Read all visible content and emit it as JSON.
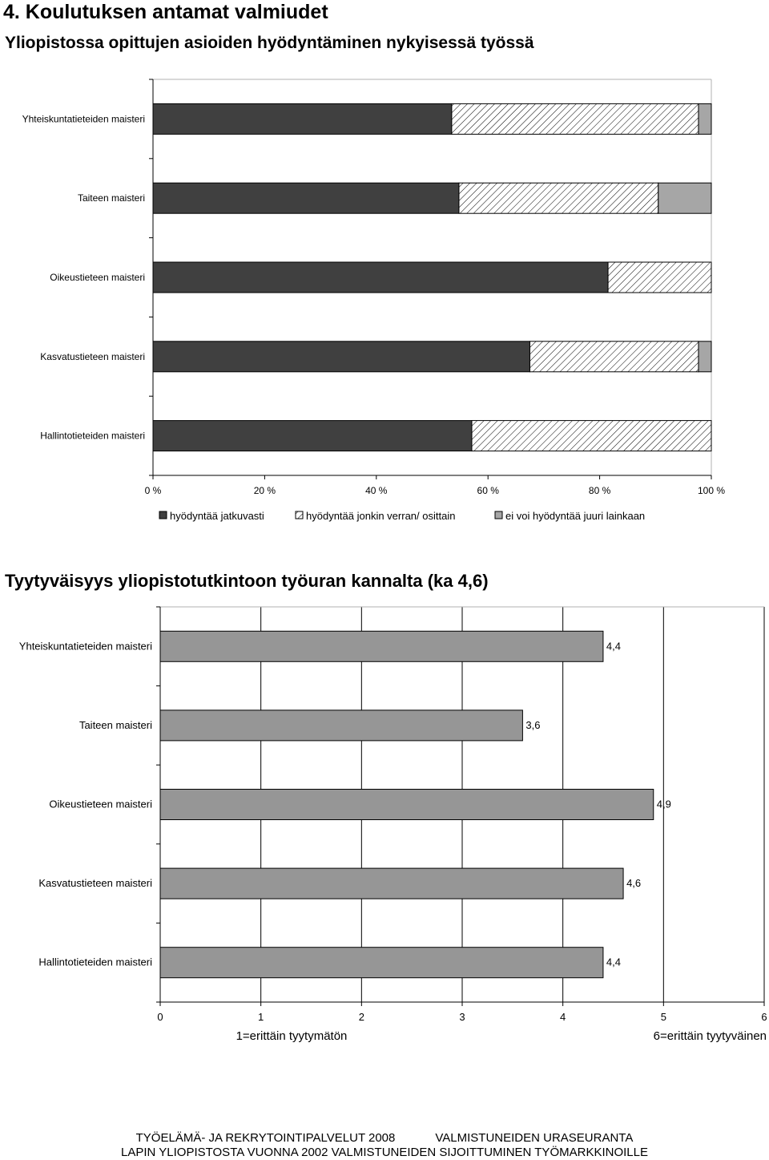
{
  "page": {
    "section_title": "4. Koulutuksen antamat valmiudet"
  },
  "chart_data": [
    {
      "type": "bar",
      "orientation": "horizontal",
      "stacked": "percent",
      "title": "Yliopistossa opittujen asioiden hyödyntäminen nykyisessä työssä",
      "categories": [
        "Yhteiskuntatieteiden maisteri",
        "Taiteen maisteri",
        "Oikeustieteen maisteri",
        "Kasvatustieteen maisteri",
        "Hallintotieteiden maisteri"
      ],
      "series": [
        {
          "name": "hyödyntää jatkuvasti",
          "values": [
            53.5,
            54.8,
            81.5,
            67.5,
            57.1
          ],
          "color": "#404040",
          "pattern": "solid"
        },
        {
          "name": "hyödyntää jonkin verran/ osittain",
          "values": [
            44.2,
            35.7,
            18.5,
            30.2,
            42.9
          ],
          "color": "#ffffff",
          "pattern": "diagonal-hatch"
        },
        {
          "name": "ei voi hyödyntää juuri lainkaan",
          "values": [
            2.3,
            9.5,
            0,
            2.3,
            0
          ],
          "color": "#a6a6a6",
          "pattern": "solid"
        }
      ],
      "xlim": [
        0,
        100
      ],
      "xticks": [
        "0 %",
        "20 %",
        "40 %",
        "60 %",
        "80 %",
        "100 %"
      ],
      "legend_position": "bottom",
      "grid": false
    },
    {
      "type": "bar",
      "orientation": "horizontal",
      "title": "Tyytyväisyys yliopistotutkintoon työuran kannalta (ka 4,6)",
      "categories": [
        "Yhteiskuntatieteiden maisteri",
        "Taiteen maisteri",
        "Oikeustieteen maisteri",
        "Kasvatustieteen maisteri",
        "Hallintotieteiden maisteri"
      ],
      "values": [
        4.4,
        3.6,
        4.9,
        4.6,
        4.4
      ],
      "data_labels": [
        "4,4",
        "3,6",
        "4,9",
        "4,6",
        "4,4"
      ],
      "bar_color": "#969696",
      "xlim": [
        0,
        6
      ],
      "xticks": [
        "0",
        "1",
        "2",
        "3",
        "4",
        "5",
        "6"
      ],
      "scale_low_label": "1=erittäin tyytymätön",
      "scale_high_label": "6=erittäin tyytyväinen",
      "grid": true
    }
  ],
  "footer": {
    "line1_left": "TYÖELÄMÄ- JA REKRYTOINTIPALVELUT 2008",
    "line1_right": "VALMISTUNEIDEN URASEURANTA",
    "line2": "LAPIN YLIOPISTOSTA VUONNA 2002 VALMISTUNEIDEN SIJOITTUMINEN TYÖMARKKINOILLE"
  }
}
